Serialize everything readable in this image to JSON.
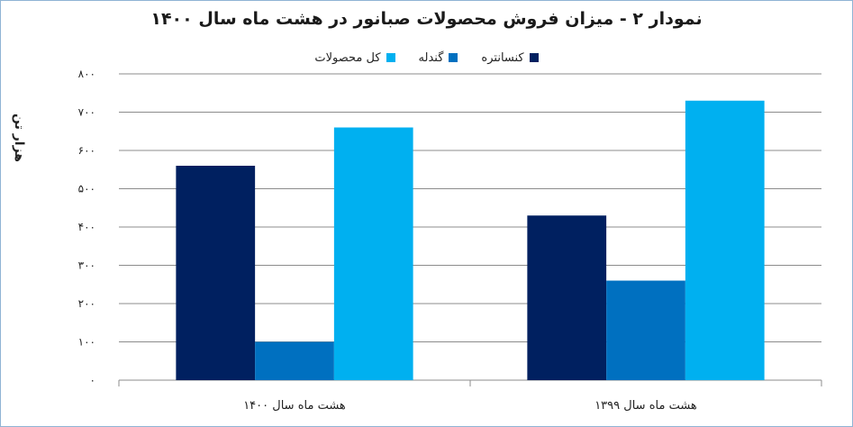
{
  "chart_data": {
    "type": "bar",
    "title": "نمودار ۲ - میزان فروش محصولات صبانور در هشت ماه سال ۱۴۰۰",
    "ylabel": "هزار تن",
    "xlabel": "",
    "ylim": [
      0,
      800
    ],
    "y_ticks": [
      0,
      100,
      200,
      300,
      400,
      500,
      600,
      700,
      800
    ],
    "y_tick_labels": [
      "۰",
      "۱۰۰",
      "۲۰۰",
      "۳۰۰",
      "۴۰۰",
      "۵۰۰",
      "۶۰۰",
      "۷۰۰",
      "۸۰۰"
    ],
    "categories": [
      "هشت ماه سال ۱۴۰۰",
      "هشت ماه سال ۱۳۹۹"
    ],
    "series": [
      {
        "name": "کنسانتره",
        "color": "#002060",
        "values": [
          560,
          430
        ]
      },
      {
        "name": "گندله",
        "color": "#0070c0",
        "values": [
          100,
          260
        ]
      },
      {
        "name": "کل محصولات",
        "color": "#00b0f0",
        "values": [
          660,
          730
        ]
      }
    ],
    "grid": true,
    "legend_position": "top"
  }
}
